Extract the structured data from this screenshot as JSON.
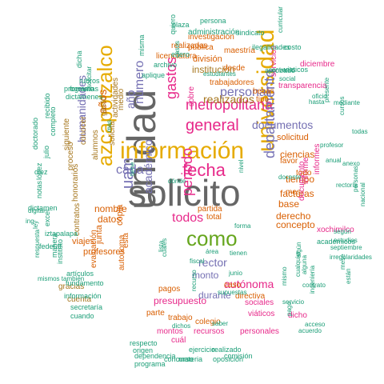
{
  "palette": {
    "green": "#1b9e77",
    "orange": "#d95f02",
    "purple": "#7570b3",
    "magenta": "#e7298a",
    "lime": "#66a61e",
    "gold": "#e6ab02",
    "brown": "#a6761d",
    "gray": "#666666"
  },
  "words": [
    {
      "text": "solicito",
      "color": "gray"
    },
    {
      "text": "unidad",
      "color": "gray"
    },
    {
      "text": "información",
      "color": "gold"
    },
    {
      "text": "universidad",
      "color": "gold"
    },
    {
      "text": "azcapotzalco",
      "color": "gold"
    },
    {
      "text": "como",
      "color": "lime"
    },
    {
      "text": "fecha",
      "color": "magenta"
    },
    {
      "text": "general",
      "color": "magenta"
    },
    {
      "text": "metropolitana",
      "color": "magenta"
    },
    {
      "text": "departamento",
      "color": "purple"
    },
    {
      "text": "uam",
      "color": "purple"
    },
    {
      "text": "gastos",
      "color": "magenta"
    },
    {
      "text": "periodo",
      "color": "magenta"
    },
    {
      "text": "todos",
      "color": "magenta"
    },
    {
      "text": "cada",
      "color": "purple"
    },
    {
      "text": "número",
      "color": "purple"
    },
    {
      "text": "académico",
      "color": "purple"
    },
    {
      "text": "personal",
      "color": "purple"
    },
    {
      "text": "documentos",
      "color": "purple"
    },
    {
      "text": "humanidades",
      "color": "purple"
    },
    {
      "text": "realizados",
      "color": "brown"
    },
    {
      "text": "rector",
      "color": "purple"
    },
    {
      "text": "monto",
      "color": "purple"
    },
    {
      "text": "autónoma",
      "color": "magenta"
    },
    {
      "text": "presupuesto",
      "color": "magenta"
    },
    {
      "text": "institución",
      "color": "brown"
    },
    {
      "text": "año",
      "color": "purple"
    },
    {
      "text": "durante",
      "color": "purple"
    },
    {
      "text": "años",
      "color": "orange"
    },
    {
      "text": "nombre",
      "color": "orange"
    },
    {
      "text": "datos",
      "color": "orange"
    },
    {
      "text": "ciencias",
      "color": "orange"
    },
    {
      "text": "facturas",
      "color": "orange"
    },
    {
      "text": "derecho",
      "color": "orange"
    },
    {
      "text": "concepto",
      "color": "orange"
    },
    {
      "text": "base",
      "color": "orange"
    },
    {
      "text": "tiempo",
      "color": "orange"
    },
    {
      "text": "solicitud",
      "color": "orange"
    },
    {
      "text": "favor",
      "color": "orange"
    },
    {
      "text": "división",
      "color": "orange"
    },
    {
      "text": "desde",
      "color": "orange"
    },
    {
      "text": "copia",
      "color": "orange"
    },
    {
      "text": "autonoma",
      "color": "orange"
    },
    {
      "text": "esta",
      "color": "orange"
    },
    {
      "text": "partida",
      "color": "orange"
    },
    {
      "text": "total",
      "color": "orange"
    },
    {
      "text": "caso",
      "color": "orange"
    },
    {
      "text": "pagos",
      "color": "orange"
    },
    {
      "text": "colegio",
      "color": "orange"
    },
    {
      "text": "directiva",
      "color": "orange"
    },
    {
      "text": "parte",
      "color": "orange"
    },
    {
      "text": "trabajo",
      "color": "orange"
    },
    {
      "text": "junta",
      "color": "orange"
    },
    {
      "text": "viajes",
      "color": "orange"
    },
    {
      "text": "profesores",
      "color": "orange"
    },
    {
      "text": "evaluación",
      "color": "orange"
    },
    {
      "text": "gracias",
      "color": "brown"
    },
    {
      "text": "cuenta",
      "color": "brown"
    },
    {
      "text": "contratos",
      "color": "brown"
    },
    {
      "text": "honorarios",
      "color": "brown"
    },
    {
      "text": "proceso",
      "color": "brown"
    },
    {
      "text": "siguiente",
      "color": "brown"
    },
    {
      "text": "alumnos",
      "color": "brown"
    },
    {
      "text": "conocer",
      "color": "brown"
    },
    {
      "text": "solicita",
      "color": "brown"
    },
    {
      "text": "medio",
      "color": "brown"
    },
    {
      "text": "actividades",
      "color": "brown"
    },
    {
      "text": "gasto",
      "color": "brown"
    },
    {
      "text": "sobre",
      "color": "magenta"
    },
    {
      "text": "tipo",
      "color": "orange"
    },
    {
      "text": "becas",
      "color": "orange"
    },
    {
      "text": "transparencia",
      "color": "magenta"
    },
    {
      "text": "trabajadores",
      "color": "orange"
    },
    {
      "text": "maestría",
      "color": "orange"
    },
    {
      "text": "pública",
      "color": "orange"
    },
    {
      "text": "licenciatura",
      "color": "orange"
    },
    {
      "text": "realizadas",
      "color": "orange"
    },
    {
      "text": "investigación",
      "color": "orange"
    },
    {
      "text": "administración",
      "color": "green"
    },
    {
      "text": "diciembre",
      "color": "magenta"
    },
    {
      "text": "servicios",
      "color": "magenta"
    },
    {
      "text": "informe",
      "color": "magenta"
    },
    {
      "text": "documento",
      "color": "magenta"
    },
    {
      "text": "todo",
      "color": "orange"
    },
    {
      "text": "mes",
      "color": "orange"
    },
    {
      "text": "informes",
      "color": "magenta"
    },
    {
      "text": "xochimilco",
      "color": "magenta"
    },
    {
      "text": "académicos",
      "color": "green"
    },
    {
      "text": "recursos",
      "color": "magenta"
    },
    {
      "text": "personales",
      "color": "magenta"
    },
    {
      "text": "sociales",
      "color": "magenta"
    },
    {
      "text": "viáticos",
      "color": "magenta"
    },
    {
      "text": "montos",
      "color": "magenta"
    },
    {
      "text": "dicho",
      "color": "magenta"
    },
    {
      "text": "cuál",
      "color": "magenta"
    },
    {
      "text": "ejercicio",
      "color": "green"
    },
    {
      "text": "realizado",
      "color": "green"
    },
    {
      "text": "concurso",
      "color": "green"
    },
    {
      "text": "materia",
      "color": "green"
    },
    {
      "text": "oposición",
      "color": "green"
    },
    {
      "text": "comisión",
      "color": "green"
    },
    {
      "text": "programa",
      "color": "green"
    },
    {
      "text": "dependencia",
      "color": "green"
    },
    {
      "text": "origen",
      "color": "green"
    },
    {
      "text": "respecto",
      "color": "green"
    },
    {
      "text": "cuando",
      "color": "green"
    },
    {
      "text": "secretaría",
      "color": "green"
    },
    {
      "text": "información",
      "color": "green"
    },
    {
      "text": "fundamento",
      "color": "green"
    },
    {
      "text": "artículos",
      "color": "green"
    },
    {
      "text": "instituto",
      "color": "green"
    },
    {
      "text": "manera",
      "color": "green"
    },
    {
      "text": "excel",
      "color": "green"
    },
    {
      "text": "federal",
      "color": "green"
    },
    {
      "text": "iztapalapa",
      "color": "green"
    },
    {
      "text": "dictamen",
      "color": "green"
    },
    {
      "text": "notas",
      "color": "green"
    },
    {
      "text": "lópez",
      "color": "green"
    },
    {
      "text": "diez",
      "color": "green"
    },
    {
      "text": "doctorado",
      "color": "green"
    },
    {
      "text": "julio",
      "color": "green"
    },
    {
      "text": "completo",
      "color": "green"
    },
    {
      "text": "recibido",
      "color": "green"
    },
    {
      "text": "formato",
      "color": "green"
    },
    {
      "text": "dictámenes",
      "color": "green"
    },
    {
      "text": "programas",
      "color": "green"
    },
    {
      "text": "rubros",
      "color": "green"
    },
    {
      "text": "dicha",
      "color": "green"
    },
    {
      "text": "aplique",
      "color": "green"
    },
    {
      "text": "archivo",
      "color": "green"
    },
    {
      "text": "enero",
      "color": "green"
    },
    {
      "text": "quiero",
      "color": "green"
    },
    {
      "text": "misma",
      "color": "green"
    },
    {
      "text": "plaza",
      "color": "green"
    },
    {
      "text": "persona",
      "color": "green"
    },
    {
      "text": "sindicato",
      "color": "green"
    },
    {
      "text": "ilegalidades",
      "color": "green"
    },
    {
      "text": "aprobado",
      "color": "green"
    },
    {
      "text": "viaticos",
      "color": "green"
    },
    {
      "text": "costo",
      "color": "green"
    },
    {
      "text": "curricular",
      "color": "green"
    },
    {
      "text": "casos",
      "color": "green"
    },
    {
      "text": "estudiantes",
      "color": "green"
    },
    {
      "text": "convenio",
      "color": "green"
    },
    {
      "text": "social",
      "color": "green"
    },
    {
      "text": "hasta",
      "color": "green"
    },
    {
      "text": "oficio",
      "color": "green"
    },
    {
      "text": "mediante",
      "color": "green"
    },
    {
      "text": "presente",
      "color": "green"
    },
    {
      "text": "cursos",
      "color": "green"
    },
    {
      "text": "todas",
      "color": "green"
    },
    {
      "text": "profesor",
      "color": "green"
    },
    {
      "text": "anual",
      "color": "green"
    },
    {
      "text": "anexo",
      "color": "green"
    },
    {
      "text": "rectoría",
      "color": "green"
    },
    {
      "text": "personas",
      "color": "green"
    },
    {
      "text": "nacional",
      "color": "green"
    },
    {
      "text": "según",
      "color": "green"
    },
    {
      "text": "estudios",
      "color": "green"
    },
    {
      "text": "septiembre",
      "color": "green"
    },
    {
      "text": "irregularidades",
      "color": "green"
    },
    {
      "text": "mese",
      "color": "green"
    },
    {
      "text": "están",
      "color": "green"
    },
    {
      "text": "alguna",
      "color": "green"
    },
    {
      "text": "algún",
      "color": "green"
    },
    {
      "text": "cualquier",
      "color": "green"
    },
    {
      "text": "contrato",
      "color": "green"
    },
    {
      "text": "ingeniería",
      "color": "green"
    },
    {
      "text": "mismo",
      "color": "green"
    },
    {
      "text": "servicio",
      "color": "green"
    },
    {
      "text": "pago",
      "color": "green"
    },
    {
      "text": "acceso",
      "color": "green"
    },
    {
      "text": "acuerdo",
      "color": "green"
    },
    {
      "text": "saber",
      "color": "green"
    },
    {
      "text": "supuestas",
      "color": "green"
    },
    {
      "text": "junio",
      "color": "green"
    },
    {
      "text": "fiscal",
      "color": "green"
    },
    {
      "text": "área",
      "color": "green"
    },
    {
      "text": "cuales",
      "color": "green"
    },
    {
      "text": "lista",
      "color": "green"
    },
    {
      "text": "tienen",
      "color": "green"
    },
    {
      "text": "forma",
      "color": "green"
    },
    {
      "text": "tiene",
      "color": "green"
    },
    {
      "text": "dónde",
      "color": "green"
    },
    {
      "text": "nivel",
      "color": "green"
    },
    {
      "text": "ley",
      "color": "green"
    },
    {
      "text": "digital",
      "color": "green"
    },
    {
      "text": "ing",
      "color": "green"
    },
    {
      "text": "respuesta",
      "color": "green"
    },
    {
      "text": "mismos también",
      "color": "green"
    },
    {
      "text": "dichos",
      "color": "green"
    },
    {
      "text": "recurso",
      "color": "green"
    },
    {
      "text": "docente",
      "color": "green"
    },
    {
      "text": "mas",
      "color": "green"
    },
    {
      "text": "solicitar",
      "color": "green"
    },
    {
      "text": "tiempo",
      "color": "green"
    },
    {
      "text": "entre",
      "color": "brown"
    },
    {
      "text": "primeros",
      "color": "brown"
    }
  ]
}
